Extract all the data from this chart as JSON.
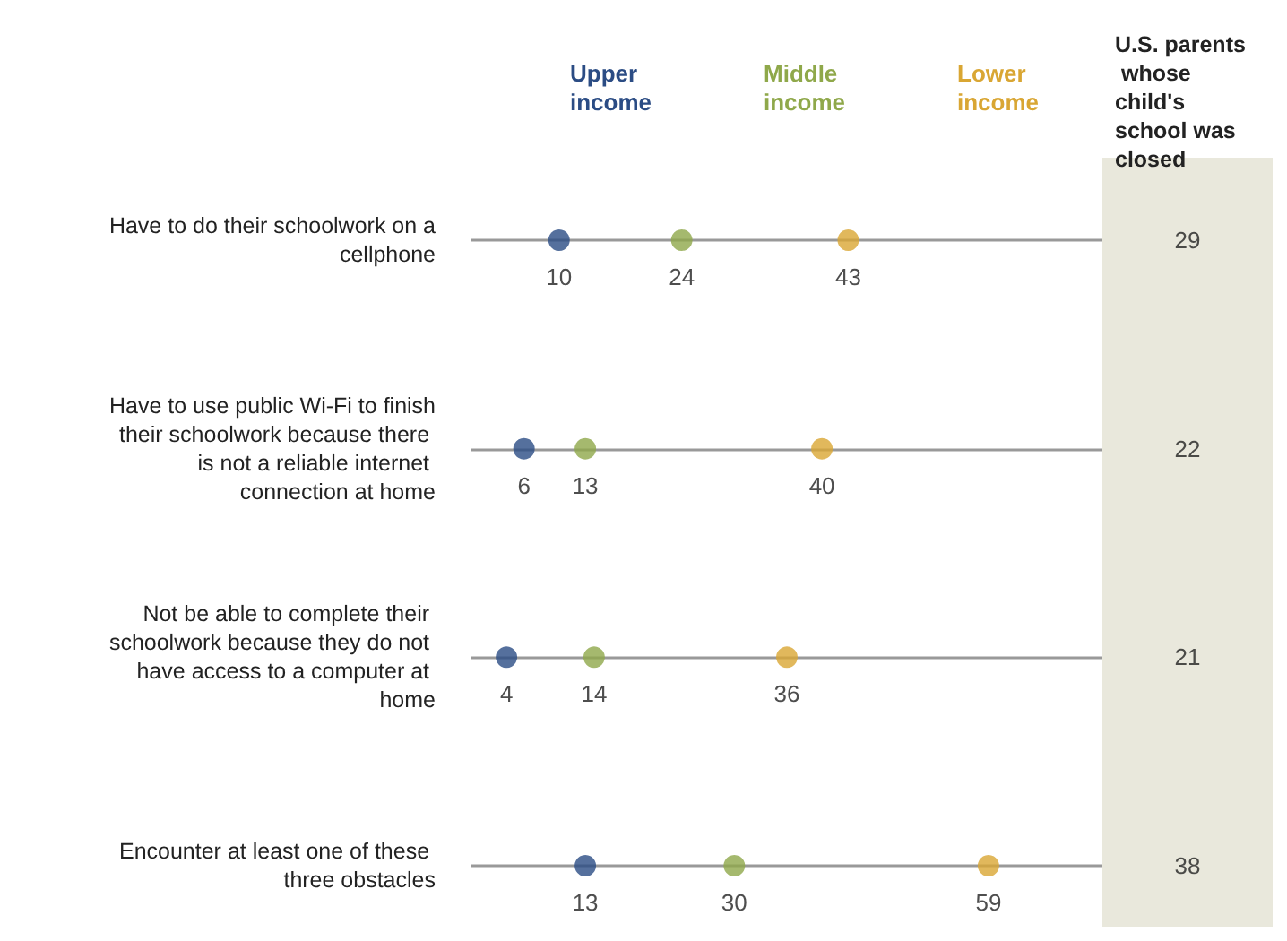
{
  "chart_data": [
    {
      "type": "scatter",
      "orientation": "horizontal",
      "categories": [
        "Have to do their schoolwork on a cellphone",
        "Have to use public Wi-Fi to finish their schoolwork because there is not a reliable internet connection at home",
        "Not be able to complete their schoolwork because they do not have access to a computer at home",
        "Encounter at least one of these three obstacles"
      ],
      "series": [
        {
          "name": "Upper income",
          "color": "#2b4c84",
          "values": [
            10,
            6,
            4,
            13
          ]
        },
        {
          "name": "Middle income",
          "color": "#8fa84a",
          "values": [
            24,
            13,
            14,
            30
          ]
        },
        {
          "name": "Lower income",
          "color": "#d9a633",
          "values": [
            43,
            40,
            36,
            59
          ]
        }
      ],
      "xlim": [
        0,
        72
      ],
      "tick_labels": "y",
      "grid": "y",
      "legend": "top",
      "data_labels": true,
      "marker": "circle"
    },
    {
      "type": "other",
      "title": "U.S. parents whose child's school was closed",
      "values": [
        29,
        22,
        21,
        38
      ],
      "data_labels": true
    }
  ]
}
